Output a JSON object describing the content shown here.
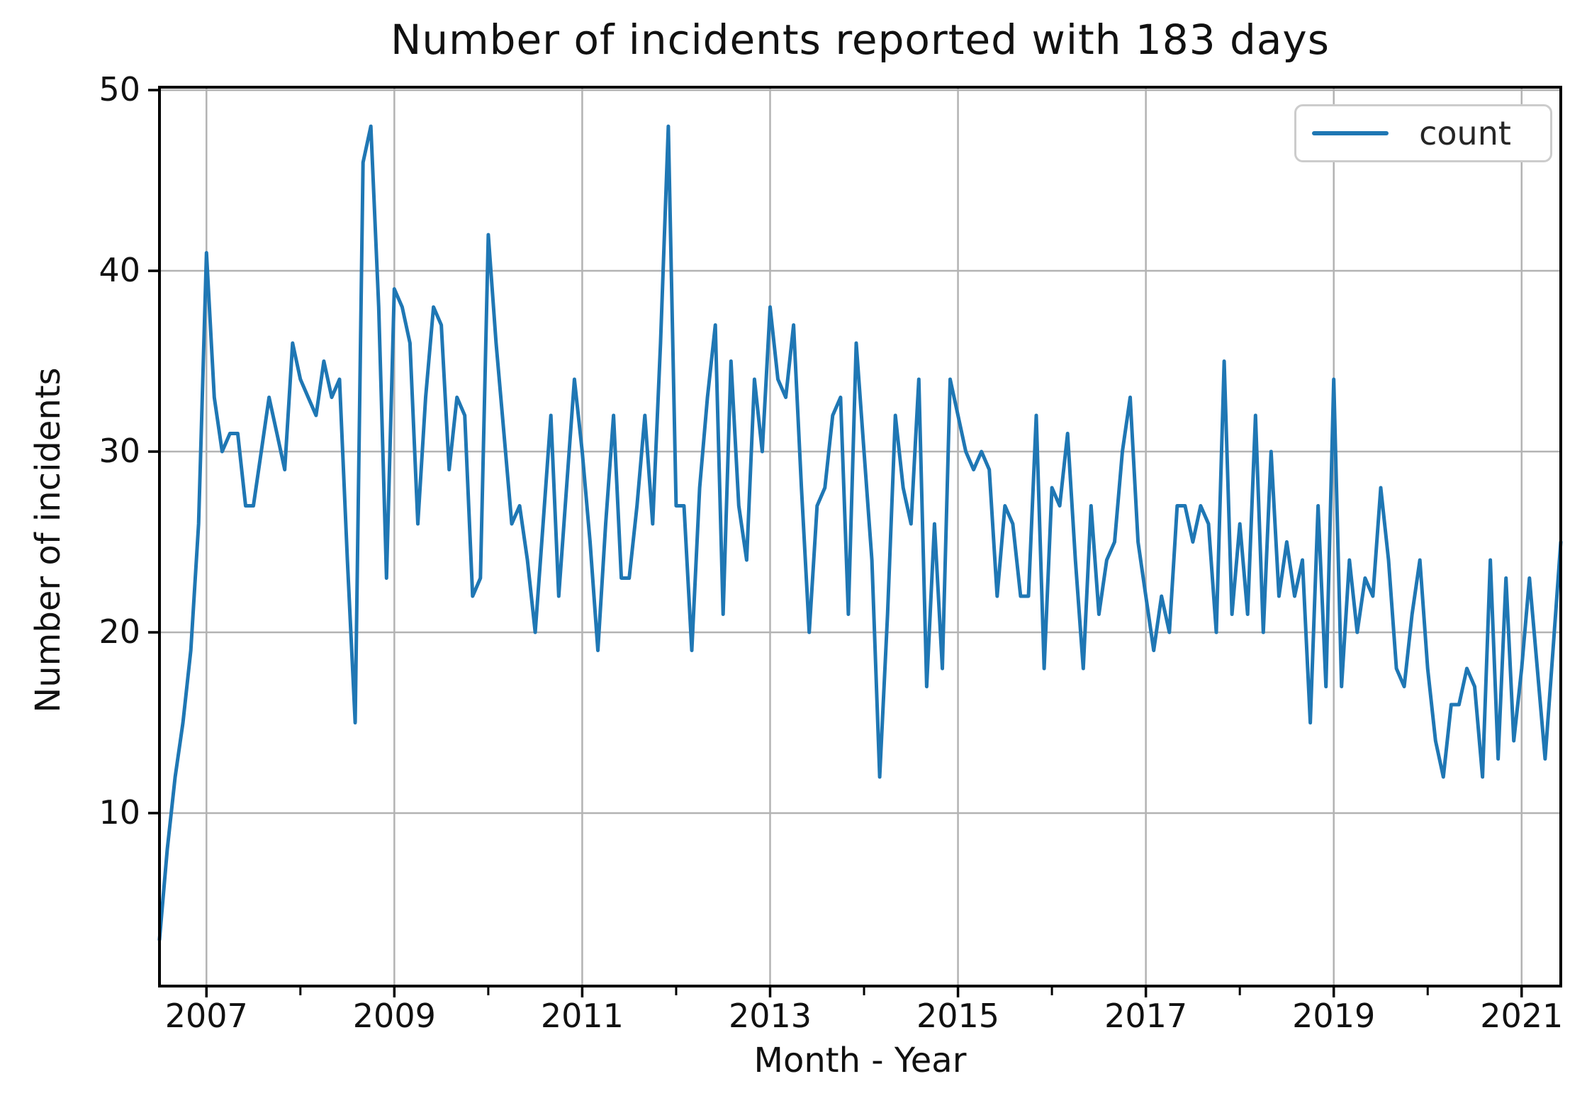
{
  "figure": {
    "title": "Number of incidents reported with 183 days",
    "xlabel": "Month - Year",
    "ylabel": "Number of incidents"
  },
  "legend": {
    "label": "count",
    "position": "upper right"
  },
  "colors": {
    "line": "#1f77b4",
    "grid": "#b3b3b3",
    "spine": "#000000",
    "tick": "#000000",
    "text": "#111111",
    "legend_border": "#cccccc",
    "background": "#ffffff"
  },
  "chart_data": {
    "type": "line",
    "title": "Number of incidents reported with 183 days",
    "xlabel": "Month - Year",
    "ylabel": "Number of incidents",
    "grid": true,
    "legend_position": "upper right",
    "start_month": "2006-07",
    "end_month": "2021-06",
    "y_ticks": [
      10,
      20,
      30,
      40,
      50
    ],
    "ylim": [
      0.43,
      50.16
    ],
    "x_ticks": [
      {
        "label": "2007",
        "month_index": 6
      },
      {
        "label": "2009",
        "month_index": 30
      },
      {
        "label": "2011",
        "month_index": 54
      },
      {
        "label": "2013",
        "month_index": 78
      },
      {
        "label": "2015",
        "month_index": 102
      },
      {
        "label": "2017",
        "month_index": 126
      },
      {
        "label": "2019",
        "month_index": 150
      },
      {
        "label": "2021",
        "month_index": 174
      }
    ],
    "x_minor_tick_month_indices": [
      18,
      42,
      66,
      90,
      114,
      138,
      162
    ],
    "series": [
      {
        "name": "count",
        "color": "#1f77b4",
        "values": [
          3,
          8,
          12,
          15,
          19,
          26,
          41,
          33,
          30,
          31,
          31,
          27,
          27,
          30,
          33,
          31,
          29,
          36,
          34,
          33,
          32,
          35,
          33,
          34,
          24,
          15,
          46,
          48,
          38,
          23,
          39,
          38,
          36,
          26,
          33,
          38,
          37,
          29,
          33,
          32,
          22,
          23,
          42,
          36,
          31,
          26,
          27,
          24,
          20,
          26,
          32,
          22,
          28,
          34,
          30,
          25,
          19,
          26,
          32,
          23,
          23,
          27,
          32,
          26,
          36,
          48,
          27,
          27,
          19,
          28,
          33,
          37,
          21,
          35,
          27,
          24,
          34,
          30,
          38,
          34,
          33,
          37,
          28,
          20,
          27,
          28,
          32,
          33,
          21,
          36,
          30,
          24,
          12,
          21,
          32,
          28,
          26,
          34,
          17,
          26,
          18,
          34,
          32,
          30,
          29,
          30,
          29,
          22,
          27,
          26,
          22,
          22,
          32,
          18,
          28,
          27,
          31,
          24,
          18,
          27,
          21,
          24,
          25,
          30,
          33,
          25,
          22,
          19,
          22,
          20,
          27,
          27,
          25,
          27,
          26,
          20,
          35,
          21,
          26,
          21,
          32,
          20,
          30,
          22,
          25,
          22,
          24,
          15,
          27,
          17,
          34,
          17,
          24,
          20,
          23,
          22,
          28,
          24,
          18,
          17,
          21,
          24,
          18,
          14,
          12,
          16,
          16,
          18,
          17,
          12,
          24,
          13,
          23,
          14,
          18,
          23,
          18,
          13,
          19,
          25
        ]
      }
    ]
  }
}
